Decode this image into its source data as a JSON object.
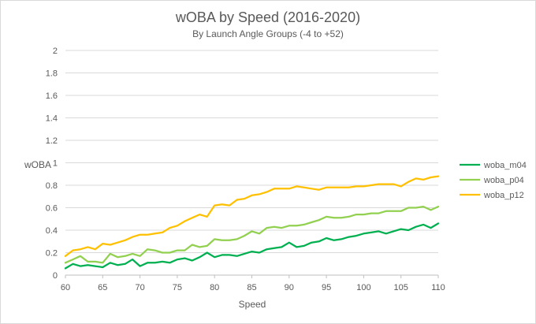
{
  "chart_data": {
    "type": "line",
    "title": "wOBA by Speed (2016-2020)",
    "subtitle": "By Launch Angle Groups (-4 to +52)",
    "xlabel": "Speed",
    "ylabel": "wOBA",
    "xlim": [
      60,
      110
    ],
    "ylim": [
      0,
      2
    ],
    "x_ticks": [
      "60",
      "65",
      "70",
      "75",
      "80",
      "85",
      "90",
      "95",
      "100",
      "105",
      "110"
    ],
    "y_ticks": [
      "0",
      "0.2",
      "0.4",
      "0.6",
      "0.8",
      "1",
      "1.2",
      "1.4",
      "1.6",
      "1.8",
      "2"
    ],
    "grid": true,
    "legend_position": "right",
    "x": [
      60,
      61,
      62,
      63,
      64,
      65,
      66,
      67,
      68,
      69,
      70,
      71,
      72,
      73,
      74,
      75,
      76,
      77,
      78,
      79,
      80,
      81,
      82,
      83,
      84,
      85,
      86,
      87,
      88,
      89,
      90,
      91,
      92,
      93,
      94,
      95,
      96,
      97,
      98,
      99,
      100,
      101,
      102,
      103,
      104,
      105,
      106,
      107,
      108,
      109,
      110
    ],
    "series": [
      {
        "name": "woba_m04",
        "color": "#00b050",
        "values": [
          0.06,
          0.1,
          0.08,
          0.09,
          0.08,
          0.07,
          0.11,
          0.09,
          0.1,
          0.14,
          0.08,
          0.11,
          0.11,
          0.12,
          0.11,
          0.14,
          0.15,
          0.13,
          0.16,
          0.2,
          0.16,
          0.18,
          0.18,
          0.17,
          0.19,
          0.21,
          0.2,
          0.23,
          0.24,
          0.25,
          0.29,
          0.25,
          0.26,
          0.29,
          0.3,
          0.33,
          0.31,
          0.32,
          0.34,
          0.35,
          0.37,
          0.38,
          0.39,
          0.37,
          0.39,
          0.41,
          0.4,
          0.43,
          0.45,
          0.42,
          0.46
        ]
      },
      {
        "name": "woba_p04",
        "color": "#92d050",
        "values": [
          0.11,
          0.14,
          0.17,
          0.12,
          0.12,
          0.11,
          0.19,
          0.16,
          0.17,
          0.19,
          0.17,
          0.23,
          0.22,
          0.2,
          0.2,
          0.22,
          0.22,
          0.27,
          0.25,
          0.26,
          0.32,
          0.31,
          0.31,
          0.32,
          0.35,
          0.39,
          0.37,
          0.42,
          0.43,
          0.42,
          0.44,
          0.44,
          0.45,
          0.47,
          0.49,
          0.52,
          0.51,
          0.51,
          0.52,
          0.54,
          0.54,
          0.55,
          0.55,
          0.57,
          0.57,
          0.57,
          0.6,
          0.6,
          0.61,
          0.58,
          0.61
        ]
      },
      {
        "name": "woba_p12",
        "color": "#ffc000",
        "values": [
          0.17,
          0.22,
          0.23,
          0.25,
          0.23,
          0.28,
          0.27,
          0.29,
          0.31,
          0.34,
          0.36,
          0.36,
          0.37,
          0.38,
          0.42,
          0.44,
          0.48,
          0.51,
          0.54,
          0.52,
          0.62,
          0.63,
          0.62,
          0.67,
          0.68,
          0.71,
          0.72,
          0.74,
          0.77,
          0.77,
          0.77,
          0.79,
          0.78,
          0.77,
          0.76,
          0.78,
          0.78,
          0.78,
          0.78,
          0.79,
          0.79,
          0.8,
          0.81,
          0.81,
          0.81,
          0.79,
          0.83,
          0.86,
          0.85,
          0.87,
          0.88
        ]
      }
    ]
  }
}
